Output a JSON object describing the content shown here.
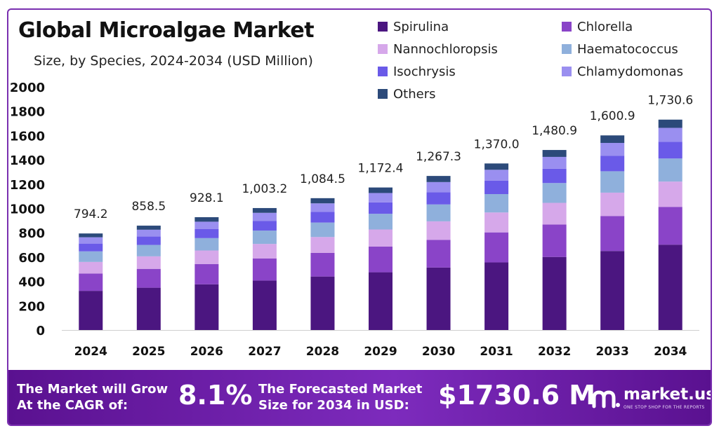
{
  "chart_data": {
    "type": "bar",
    "stacked": true,
    "title": "Global Microalgae Market",
    "subtitle": "Size, by Species, 2024-2034 (USD Million)",
    "categories": [
      "2024",
      "2025",
      "2026",
      "2027",
      "2028",
      "2029",
      "2030",
      "2031",
      "2032",
      "2033",
      "2034"
    ],
    "totals": [
      794.2,
      858.5,
      928.1,
      1003.2,
      1084.5,
      1172.4,
      1267.3,
      1370.0,
      1480.9,
      1600.9,
      1730.6
    ],
    "total_labels": [
      "794.2",
      "858.5",
      "928.1",
      "1,003.2",
      "1,084.5",
      "1,172.4",
      "1,267.3",
      "1,370.0",
      "1,480.9",
      "1,600.9",
      "1,730.6"
    ],
    "series": [
      {
        "name": "Spirulina",
        "color": "#4b1680",
        "values": [
          322,
          348,
          376,
          407,
          440,
          475,
          514,
          556,
          601,
          650,
          702
        ]
      },
      {
        "name": "Chlorella",
        "color": "#8a44c8",
        "values": [
          143,
          155,
          167,
          181,
          195,
          211,
          228,
          247,
          267,
          288,
          311
        ]
      },
      {
        "name": "Nannochloropsis",
        "color": "#d6a8ea",
        "values": [
          95,
          103,
          111,
          120,
          130,
          141,
          152,
          164,
          178,
          192,
          208
        ]
      },
      {
        "name": "Haematococcus",
        "color": "#8fb0dc",
        "values": [
          87,
          94,
          102,
          110,
          119,
          129,
          139,
          151,
          163,
          176,
          190
        ]
      },
      {
        "name": "Isochrysis",
        "color": "#6a5ae8",
        "values": [
          64,
          69,
          74,
          80,
          87,
          94,
          101,
          110,
          118,
          128,
          138
        ]
      },
      {
        "name": "Chlamydomonas",
        "color": "#9a8ff0",
        "values": [
          52,
          56,
          61,
          66,
          71,
          77,
          83,
          90,
          97,
          105,
          114
        ]
      },
      {
        "name": "Others",
        "color": "#2c4a7a",
        "values": [
          31.2,
          33.5,
          37.1,
          39.2,
          42.5,
          45.4,
          50.3,
          52.0,
          56.9,
          61.9,
          67.6
        ]
      }
    ],
    "y_ticks": [
      0,
      200,
      400,
      600,
      800,
      1000,
      1200,
      1400,
      1600,
      1800,
      2000
    ],
    "ylim": [
      0,
      2000
    ],
    "xlabel": "",
    "ylabel": "",
    "grid": false,
    "legend_position": "top-right"
  },
  "banner": {
    "cagr_text_line1": "The Market will Grow",
    "cagr_text_line2": "At the CAGR of:",
    "cagr_value": "8.1%",
    "forecast_text_line1": "The Forecasted Market",
    "forecast_text_line2": "Size for 2034 in USD:",
    "forecast_value": "$1730.6 M",
    "logo_text": "market.us",
    "logo_tagline": "ONE STOP SHOP FOR THE REPORTS"
  },
  "colors": {
    "banner": "#6a1fa6",
    "accent": "#7a2fb0"
  }
}
